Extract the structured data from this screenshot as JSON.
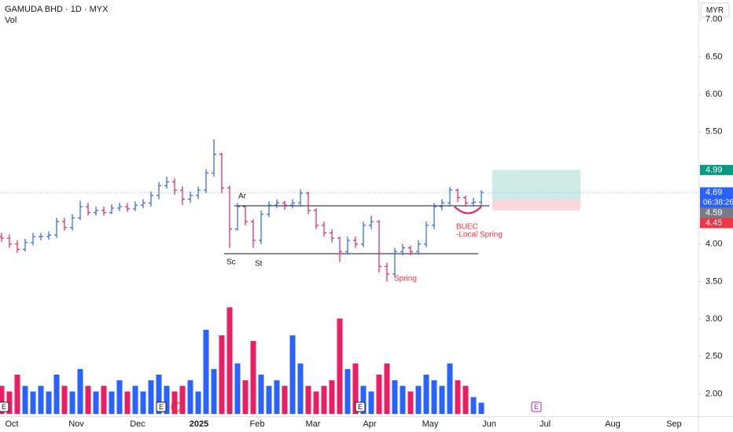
{
  "chart_data": {
    "type": "ohlc",
    "title": "GAMUDA BHD · 1D · MYX",
    "volume_label": "Vol",
    "currency": "MYR",
    "up_color": "#2962ff",
    "down_color": "#e91e63",
    "open": [
      4.1,
      4.08,
      4.0,
      3.93,
      4.02,
      4.1,
      4.1,
      4.12,
      4.3,
      4.22,
      4.35,
      4.5,
      4.42,
      4.45,
      4.42,
      4.48,
      4.5,
      4.47,
      4.52,
      4.55,
      4.65,
      4.78,
      4.83,
      4.72,
      4.6,
      4.65,
      4.72,
      4.95,
      5.2,
      4.75,
      4.2,
      4.5,
      4.3,
      4.05,
      4.4,
      4.52,
      4.55,
      4.52,
      4.55,
      4.68,
      4.45,
      4.25,
      4.15,
      4.08,
      3.9,
      4.05,
      4.0,
      4.25,
      4.3,
      3.7,
      3.6,
      3.9,
      3.95,
      3.9,
      4.0,
      4.25,
      4.5,
      4.55,
      4.72,
      4.62,
      4.55,
      4.56
    ],
    "high": [
      4.15,
      4.13,
      4.05,
      4.07,
      4.15,
      4.15,
      4.17,
      4.35,
      4.35,
      4.4,
      4.58,
      4.55,
      4.5,
      4.5,
      4.53,
      4.55,
      4.55,
      4.57,
      4.6,
      4.7,
      4.83,
      4.9,
      4.88,
      4.77,
      4.7,
      4.77,
      5.0,
      5.4,
      5.22,
      4.78,
      4.55,
      4.52,
      4.33,
      4.45,
      4.57,
      4.6,
      4.58,
      4.6,
      4.73,
      4.7,
      4.48,
      4.3,
      4.2,
      4.1,
      4.1,
      4.1,
      4.3,
      4.38,
      4.32,
      3.75,
      3.95,
      4.0,
      3.98,
      4.05,
      4.3,
      4.55,
      4.6,
      4.76,
      4.74,
      4.65,
      4.62,
      4.72
    ],
    "low": [
      4.03,
      3.95,
      3.88,
      3.9,
      3.98,
      4.05,
      4.06,
      4.08,
      4.18,
      4.18,
      4.32,
      4.38,
      4.38,
      4.38,
      4.4,
      4.44,
      4.43,
      4.44,
      4.48,
      4.5,
      4.6,
      4.74,
      4.66,
      4.52,
      4.55,
      4.6,
      4.68,
      4.9,
      4.68,
      3.95,
      4.18,
      4.25,
      3.95,
      4.0,
      4.36,
      4.48,
      4.46,
      4.48,
      4.5,
      4.4,
      4.2,
      4.1,
      4.02,
      3.76,
      3.86,
      3.95,
      3.96,
      4.2,
      3.62,
      3.5,
      3.56,
      3.85,
      3.85,
      3.86,
      3.96,
      4.2,
      4.45,
      4.5,
      4.56,
      4.5,
      4.5,
      4.52
    ],
    "close": [
      4.08,
      4.0,
      3.93,
      4.02,
      4.1,
      4.1,
      4.12,
      4.3,
      4.22,
      4.35,
      4.5,
      4.42,
      4.45,
      4.42,
      4.48,
      4.5,
      4.47,
      4.52,
      4.55,
      4.65,
      4.78,
      4.83,
      4.72,
      4.6,
      4.65,
      4.72,
      4.95,
      5.2,
      4.75,
      4.2,
      4.5,
      4.3,
      4.05,
      4.4,
      4.52,
      4.55,
      4.52,
      4.55,
      4.68,
      4.45,
      4.25,
      4.15,
      4.08,
      3.9,
      4.05,
      4.0,
      4.25,
      4.3,
      3.7,
      3.6,
      3.9,
      3.95,
      3.9,
      4.0,
      4.25,
      4.5,
      4.55,
      4.72,
      4.62,
      4.55,
      4.56,
      4.69
    ],
    "volume": [
      5,
      4,
      7,
      5,
      4,
      5,
      4,
      7,
      5,
      4,
      8,
      5,
      4,
      5,
      4,
      6,
      4,
      5,
      4,
      6,
      7,
      5,
      4,
      5,
      6,
      4,
      15,
      8,
      14,
      19,
      9,
      6,
      13,
      7,
      5,
      6,
      5,
      14,
      9,
      5,
      4,
      5,
      6,
      17,
      8,
      9,
      5,
      4,
      7,
      9,
      6,
      5,
      4,
      5,
      7,
      6,
      5,
      9,
      6,
      5,
      3,
      2
    ],
    "vlim": [
      0,
      21
    ],
    "ylim": [
      1.7,
      7.26
    ],
    "yticks": [
      {
        "value": 7,
        "label": "7.00"
      },
      {
        "value": 6.5,
        "label": "6.50"
      },
      {
        "value": 6,
        "label": "6.00"
      },
      {
        "value": 5.5,
        "label": "5.50"
      },
      {
        "value": 4,
        "label": "4.00"
      },
      {
        "value": 3.5,
        "label": "3.50"
      },
      {
        "value": 3,
        "label": "3.00"
      },
      {
        "value": 2.5,
        "label": "2.50"
      },
      {
        "value": 2,
        "label": "2.00"
      }
    ],
    "xlim": [
      -0.2,
      88.6
    ],
    "xticks": [
      {
        "value": 1.3,
        "label": "Oct"
      },
      {
        "value": 9.5,
        "label": "Nov"
      },
      {
        "value": 17.3,
        "label": "Dec"
      },
      {
        "value": 25.1,
        "label": "2025"
      },
      {
        "value": 32.5,
        "label": "Feb"
      },
      {
        "value": 39.6,
        "label": "Mar"
      },
      {
        "value": 46.8,
        "label": "Apr"
      },
      {
        "value": 54.5,
        "label": "May"
      },
      {
        "value": 62,
        "label": "Jun"
      },
      {
        "value": 69.1,
        "label": "Jul"
      },
      {
        "value": 77.7,
        "label": "Aug"
      },
      {
        "value": 85.5,
        "label": "Sep"
      }
    ],
    "price_labels": [
      4.99,
      4.69,
      4.59,
      4.45
    ],
    "countdown": "06:38:26",
    "annotations": [
      "Ar",
      "Sc",
      "St",
      "Spring",
      "BUEC",
      "-Local Spring"
    ],
    "events": [
      "E",
      "E",
      "E",
      "E"
    ]
  }
}
